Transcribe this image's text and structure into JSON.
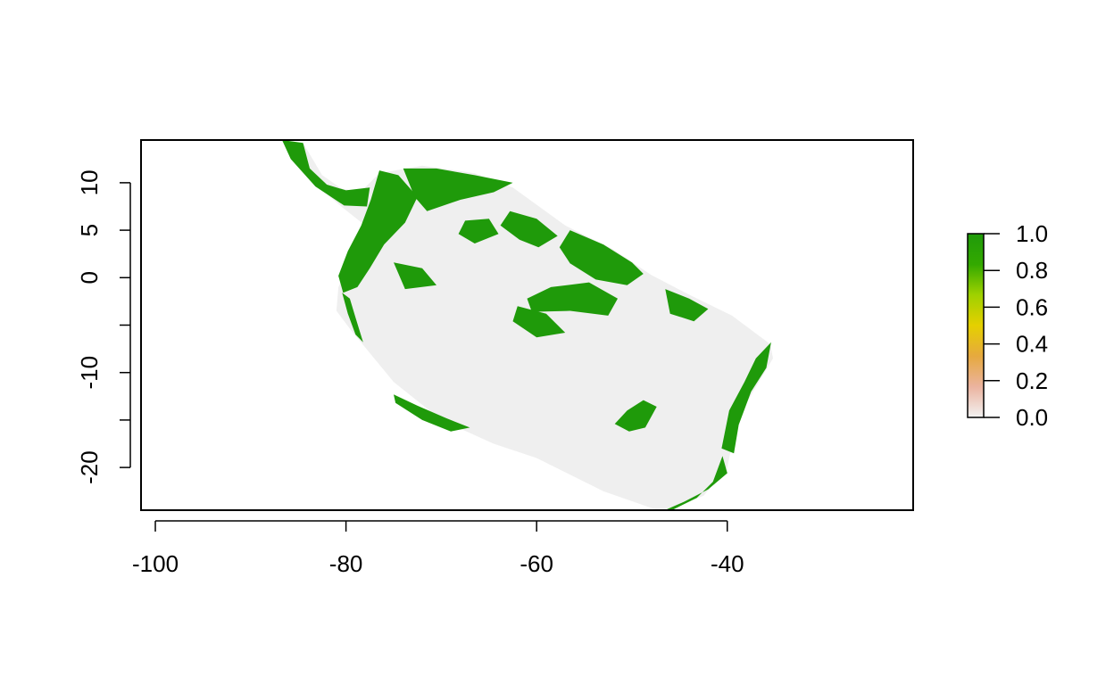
{
  "map": {
    "x_axis": {
      "range": [
        -101.5,
        -20.5
      ],
      "ticks": [
        {
          "value": -100,
          "label": "-100"
        },
        {
          "value": -80,
          "label": "-80"
        },
        {
          "value": -60,
          "label": "-60"
        },
        {
          "value": -40,
          "label": "-40"
        }
      ]
    },
    "y_axis": {
      "range": [
        -24.5,
        14.5
      ],
      "ticks": [
        {
          "value": 10,
          "label": "10"
        },
        {
          "value": 5,
          "label": "5"
        },
        {
          "value": 0,
          "label": "0"
        },
        {
          "value": -5,
          "label": ""
        },
        {
          "value": -10,
          "label": "-10"
        },
        {
          "value": -15,
          "label": ""
        },
        {
          "value": -20,
          "label": "-20"
        }
      ]
    },
    "colors": {
      "background_region": "#efefef",
      "presence": "#1f9a0a",
      "frame": "#000000"
    },
    "legend": {
      "placement": "right",
      "range": [
        0,
        1
      ],
      "stops": [
        "#f2f2f2",
        "#ebb39f",
        "#e6a93f",
        "#e5d000",
        "#9fd100",
        "#33a900",
        "#1f9a0a"
      ],
      "ticks": [
        {
          "value": 1.0,
          "label": "1.0"
        },
        {
          "value": 0.8,
          "label": "0.8"
        },
        {
          "value": 0.6,
          "label": "0.6"
        },
        {
          "value": 0.4,
          "label": "0.4"
        },
        {
          "value": 0.2,
          "label": "0.2"
        },
        {
          "value": 0.0,
          "label": "0.0"
        }
      ]
    },
    "region_outline": [
      [
        -86.7,
        14.5
      ],
      [
        -84.5,
        14.2
      ],
      [
        -82.5,
        10.8
      ],
      [
        -80.5,
        9.4
      ],
      [
        -78.5,
        9.0
      ],
      [
        -76.5,
        11.0
      ],
      [
        -72.0,
        11.8
      ],
      [
        -66.5,
        11.0
      ],
      [
        -62.5,
        9.5
      ],
      [
        -57.0,
        5.5
      ],
      [
        -52.0,
        3.0
      ],
      [
        -48.0,
        0.3
      ],
      [
        -44.0,
        -1.8
      ],
      [
        -39.5,
        -4.0
      ],
      [
        -35.5,
        -7.0
      ],
      [
        -35.2,
        -8.5
      ],
      [
        -37.0,
        -11.5
      ],
      [
        -39.0,
        -15.0
      ],
      [
        -40.0,
        -20.0
      ],
      [
        -42.5,
        -23.0
      ],
      [
        -47.0,
        -24.6
      ],
      [
        -53.0,
        -22.5
      ],
      [
        -60.0,
        -19.0
      ],
      [
        -64.5,
        -17.5
      ],
      [
        -70.0,
        -15.0
      ],
      [
        -75.0,
        -11.0
      ],
      [
        -79.5,
        -5.5
      ],
      [
        -81.0,
        -3.5
      ],
      [
        -80.8,
        -1.0
      ],
      [
        -79.5,
        1.5
      ],
      [
        -78.0,
        5.5
      ],
      [
        -80.5,
        7.5
      ],
      [
        -84.0,
        10.5
      ],
      [
        -86.7,
        14.5
      ]
    ],
    "presence_patches": [
      [
        [
          -86.7,
          14.5
        ],
        [
          -84.5,
          14.2
        ],
        [
          -83.8,
          11.5
        ],
        [
          -82.0,
          9.8
        ],
        [
          -80.0,
          9.2
        ],
        [
          -77.5,
          9.5
        ],
        [
          -77.8,
          7.5
        ],
        [
          -80.2,
          7.6
        ],
        [
          -83.2,
          9.6
        ],
        [
          -85.8,
          12.5
        ]
      ],
      [
        [
          -76.5,
          11.3
        ],
        [
          -74.5,
          10.8
        ],
        [
          -72.5,
          8.5
        ],
        [
          -73.8,
          5.8
        ],
        [
          -76.0,
          3.5
        ],
        [
          -77.5,
          1.0
        ],
        [
          -78.8,
          -1.0
        ],
        [
          -80.3,
          -1.6
        ],
        [
          -80.8,
          0.2
        ],
        [
          -79.8,
          2.8
        ],
        [
          -78.4,
          5.5
        ],
        [
          -77.4,
          8.2
        ]
      ],
      [
        [
          -74.0,
          11.5
        ],
        [
          -70.5,
          11.5
        ],
        [
          -66.5,
          10.8
        ],
        [
          -62.5,
          10.0
        ],
        [
          -64.5,
          9.0
        ],
        [
          -68.0,
          8.2
        ],
        [
          -71.5,
          7.0
        ],
        [
          -72.8,
          8.5
        ]
      ],
      [
        [
          -80.4,
          -1.6
        ],
        [
          -79.8,
          -3.8
        ],
        [
          -79.0,
          -6.0
        ],
        [
          -78.2,
          -6.8
        ],
        [
          -79.0,
          -4.2
        ],
        [
          -79.6,
          -2.2
        ]
      ],
      [
        [
          -62.8,
          7.0
        ],
        [
          -60.0,
          6.2
        ],
        [
          -57.8,
          4.4
        ],
        [
          -59.8,
          3.2
        ],
        [
          -61.8,
          4.0
        ],
        [
          -63.8,
          5.5
        ]
      ],
      [
        [
          -56.5,
          5.0
        ],
        [
          -53.0,
          3.5
        ],
        [
          -50.0,
          1.6
        ],
        [
          -48.8,
          0.4
        ],
        [
          -50.5,
          -0.8
        ],
        [
          -53.8,
          -0.2
        ],
        [
          -56.5,
          1.5
        ],
        [
          -57.6,
          3.2
        ]
      ],
      [
        [
          -58.5,
          -1.0
        ],
        [
          -54.5,
          -0.5
        ],
        [
          -51.5,
          -2.2
        ],
        [
          -52.5,
          -4.0
        ],
        [
          -56.5,
          -3.5
        ],
        [
          -60.5,
          -3.6
        ],
        [
          -61.0,
          -2.2
        ]
      ],
      [
        [
          -46.5,
          -1.2
        ],
        [
          -44.0,
          -2.2
        ],
        [
          -42.0,
          -3.3
        ],
        [
          -43.5,
          -4.6
        ],
        [
          -46.0,
          -3.8
        ]
      ],
      [
        [
          -35.4,
          -6.8
        ],
        [
          -35.9,
          -9.5
        ],
        [
          -37.5,
          -12.0
        ],
        [
          -38.8,
          -15.5
        ],
        [
          -39.3,
          -18.5
        ],
        [
          -40.6,
          -18.0
        ],
        [
          -39.8,
          -14.0
        ],
        [
          -38.2,
          -11.0
        ],
        [
          -37.0,
          -8.5
        ]
      ],
      [
        [
          -40.5,
          -18.8
        ],
        [
          -41.5,
          -21.5
        ],
        [
          -43.2,
          -23.2
        ],
        [
          -45.8,
          -24.5
        ],
        [
          -47.0,
          -24.7
        ],
        [
          -44.5,
          -23.6
        ],
        [
          -42.0,
          -22.3
        ],
        [
          -40.0,
          -20.6
        ]
      ],
      [
        [
          -50.5,
          -14.0
        ],
        [
          -48.8,
          -12.9
        ],
        [
          -47.4,
          -13.6
        ],
        [
          -48.6,
          -15.8
        ],
        [
          -50.3,
          -16.2
        ],
        [
          -51.8,
          -15.4
        ]
      ],
      [
        [
          -75.0,
          -12.3
        ],
        [
          -72.5,
          -13.5
        ],
        [
          -69.5,
          -14.8
        ],
        [
          -67.0,
          -15.8
        ],
        [
          -69.0,
          -16.2
        ],
        [
          -72.0,
          -15.0
        ],
        [
          -74.8,
          -13.2
        ]
      ],
      [
        [
          -67.5,
          6.0
        ],
        [
          -65.0,
          6.2
        ],
        [
          -64.0,
          4.6
        ],
        [
          -66.5,
          3.6
        ],
        [
          -68.2,
          4.6
        ]
      ],
      [
        [
          -75.0,
          1.6
        ],
        [
          -72.0,
          1.0
        ],
        [
          -70.5,
          -0.8
        ],
        [
          -73.8,
          -1.2
        ]
      ],
      [
        [
          -62.0,
          -3.0
        ],
        [
          -59.0,
          -3.8
        ],
        [
          -57.0,
          -5.8
        ],
        [
          -60.0,
          -6.3
        ],
        [
          -62.5,
          -4.6
        ]
      ]
    ]
  }
}
